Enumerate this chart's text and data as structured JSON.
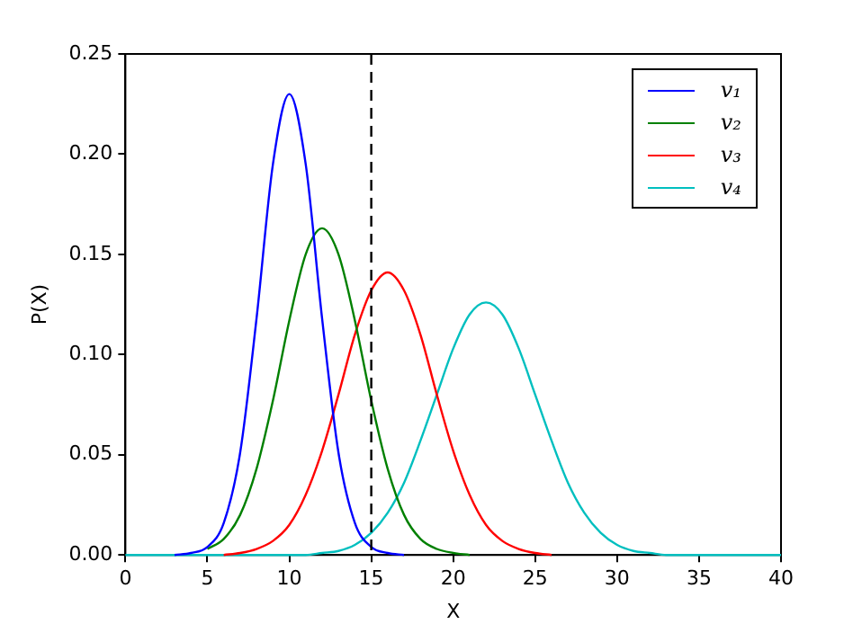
{
  "chart_data": {
    "type": "line",
    "xlabel": "X",
    "ylabel": "P(X)",
    "x": [
      0,
      1,
      2,
      3,
      4,
      5,
      6,
      7,
      8,
      9,
      10,
      11,
      12,
      13,
      14,
      15,
      16,
      17,
      18,
      19,
      20,
      21,
      22,
      23,
      24,
      25,
      26,
      27,
      28,
      29,
      30,
      31,
      32,
      33,
      34,
      35,
      36,
      37,
      38,
      39,
      40
    ],
    "series": [
      {
        "name": "v₁",
        "color": "#0000ff",
        "values": [
          null,
          null,
          null,
          0,
          0.001,
          0.004,
          0.016,
          0.051,
          0.118,
          0.195,
          0.23,
          0.195,
          0.118,
          0.051,
          0.016,
          0.004,
          0.001,
          0,
          null,
          null,
          null,
          null,
          null,
          null,
          null,
          null,
          null,
          null,
          null,
          null,
          null,
          null,
          null,
          null,
          null,
          null,
          null,
          null,
          null,
          null,
          null
        ]
      },
      {
        "name": "v₂",
        "color": "#008000",
        "values": [
          null,
          null,
          null,
          null,
          null,
          0.003,
          0.008,
          0.02,
          0.043,
          0.077,
          0.117,
          0.15,
          0.163,
          0.15,
          0.117,
          0.077,
          0.043,
          0.02,
          0.008,
          0.003,
          0.001,
          0,
          null,
          null,
          null,
          null,
          null,
          null,
          null,
          null,
          null,
          null,
          null,
          null,
          null,
          null,
          null,
          null,
          null,
          null,
          null
        ]
      },
      {
        "name": "v₃",
        "color": "#ff0000",
        "values": [
          null,
          null,
          null,
          null,
          null,
          null,
          0,
          0.001,
          0.003,
          0.007,
          0.015,
          0.03,
          0.052,
          0.08,
          0.11,
          0.132,
          0.141,
          0.132,
          0.11,
          0.08,
          0.052,
          0.03,
          0.015,
          0.007,
          0.003,
          0.001,
          0,
          null,
          null,
          null,
          null,
          null,
          null,
          null,
          null,
          null,
          null,
          null,
          null,
          null,
          null
        ]
      },
      {
        "name": "v₄",
        "color": "#00bfbf",
        "values": [
          0,
          0,
          0,
          0,
          0,
          0,
          0,
          0,
          0,
          0,
          0,
          0,
          0.001,
          0.002,
          0.005,
          0.011,
          0.021,
          0.036,
          0.057,
          0.08,
          0.103,
          0.12,
          0.126,
          0.12,
          0.103,
          0.08,
          0.057,
          0.036,
          0.021,
          0.011,
          0.005,
          0.002,
          0.001,
          0,
          0,
          0,
          0,
          0,
          0,
          0,
          0
        ]
      }
    ],
    "xlim": [
      0,
      40
    ],
    "xticks": [
      0,
      5,
      10,
      15,
      20,
      25,
      30,
      35,
      40
    ],
    "ylim": [
      0,
      0.25
    ],
    "yticks": [
      {
        "value": 0,
        "label": "0.00"
      },
      {
        "value": 0.05,
        "label": "0.05"
      },
      {
        "value": 0.1,
        "label": "0.10"
      },
      {
        "value": 0.15,
        "label": "0.15"
      },
      {
        "value": 0.2,
        "label": "0.20"
      },
      {
        "value": 0.25,
        "label": "0.25"
      }
    ],
    "ref_lines": [
      {
        "axis": "x",
        "value": 15,
        "color": "#000000",
        "line_style": "dashed"
      }
    ],
    "grid": false,
    "legend": "top right",
    "marker": "none",
    "line_style": "solid"
  }
}
